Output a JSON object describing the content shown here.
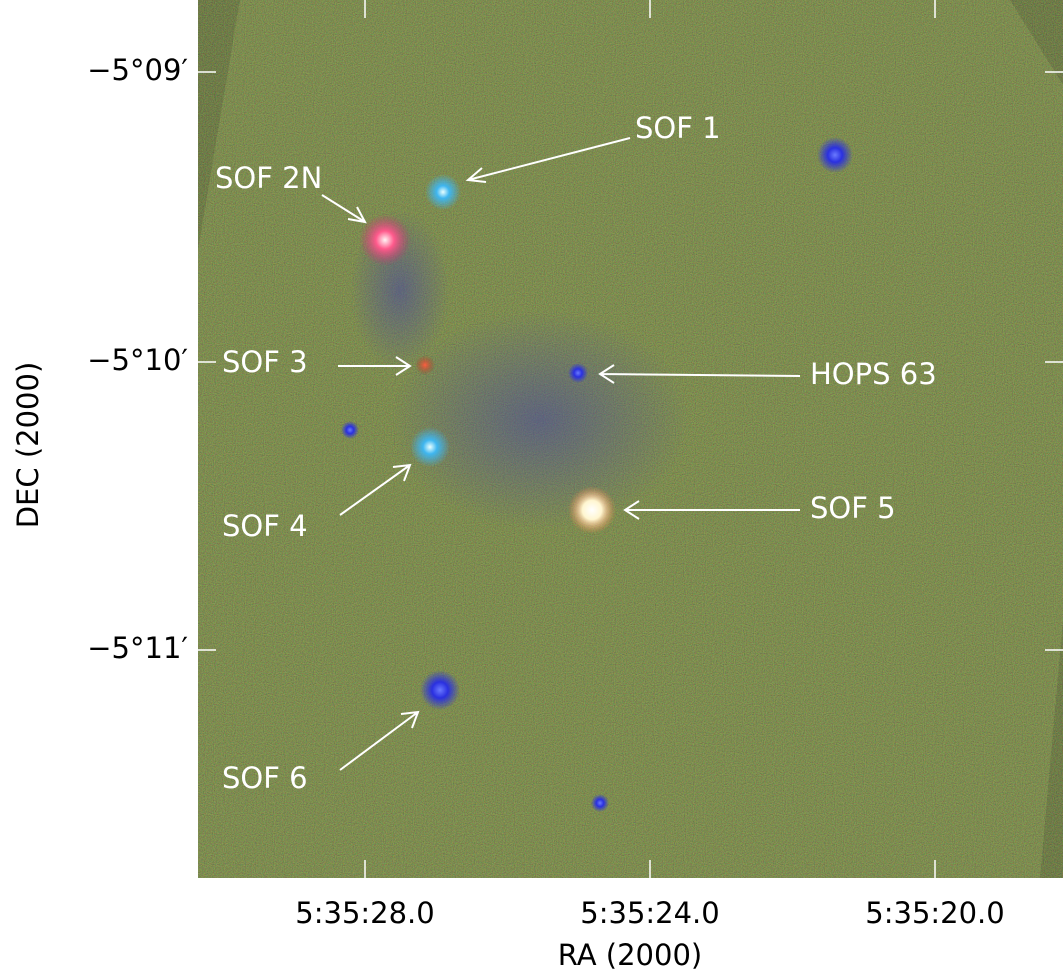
{
  "axes": {
    "x_label": "RA (2000)",
    "y_label": "DEC (2000)",
    "x_ticks": [
      "5:35:28.0",
      "5:35:24.0",
      "5:35:20.0"
    ],
    "y_ticks": [
      "−5°09′",
      "−5°10′",
      "−5°11′"
    ]
  },
  "annotations": [
    "SOF 1",
    "SOF 2N",
    "SOF 3",
    "HOPS 63",
    "SOF 4",
    "SOF 5",
    "SOF 6"
  ]
}
